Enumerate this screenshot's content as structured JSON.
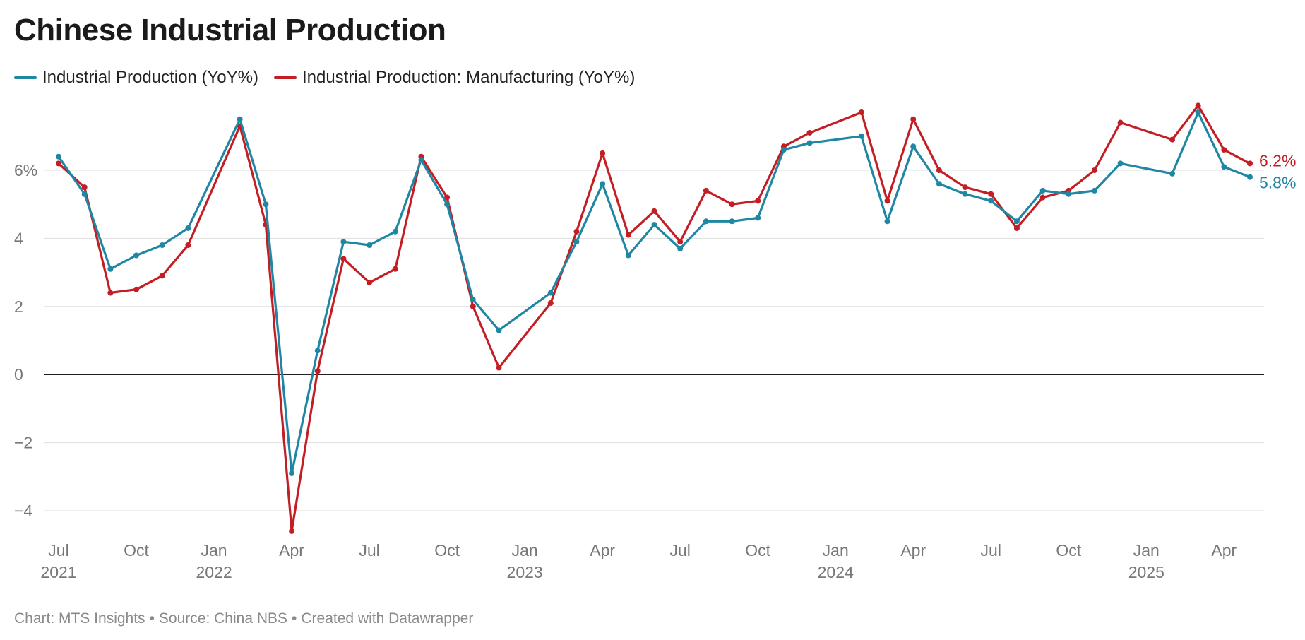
{
  "title": "Chinese Industrial Production",
  "footer": {
    "chart_by": "Chart: MTS Insights",
    "source": "Source: China NBS",
    "created": "Created with Datawrapper",
    "separator": "•"
  },
  "colors": {
    "ip": "#1f86a3",
    "manufacturing": "#c41e25",
    "grid": "#dddddd",
    "zero": "#222222",
    "tick": "#777777"
  },
  "chart_data": {
    "type": "line",
    "title": "Chinese Industrial Production",
    "xlabel": "",
    "ylabel": "",
    "ylim": [
      -4.6,
      7.8
    ],
    "yticks": [
      {
        "value": -4,
        "label": "−4"
      },
      {
        "value": -2,
        "label": "−2"
      },
      {
        "value": 0,
        "label": "0"
      },
      {
        "value": 2,
        "label": "2"
      },
      {
        "value": 4,
        "label": "4"
      },
      {
        "value": 6,
        "label": "6%"
      }
    ],
    "xticks": [
      {
        "index": 0,
        "month": "Jul",
        "year": "2021"
      },
      {
        "index": 3,
        "month": "Oct",
        "year": ""
      },
      {
        "index": 6,
        "month": "Jan",
        "year": "2022"
      },
      {
        "index": 9,
        "month": "Apr",
        "year": ""
      },
      {
        "index": 12,
        "month": "Jul",
        "year": ""
      },
      {
        "index": 15,
        "month": "Oct",
        "year": ""
      },
      {
        "index": 18,
        "month": "Jan",
        "year": "2023"
      },
      {
        "index": 21,
        "month": "Apr",
        "year": ""
      },
      {
        "index": 24,
        "month": "Jul",
        "year": ""
      },
      {
        "index": 27,
        "month": "Oct",
        "year": ""
      },
      {
        "index": 30,
        "month": "Jan",
        "year": "2024"
      },
      {
        "index": 33,
        "month": "Apr",
        "year": ""
      },
      {
        "index": 36,
        "month": "Jul",
        "year": ""
      },
      {
        "index": 39,
        "month": "Oct",
        "year": ""
      },
      {
        "index": 42,
        "month": "Jan",
        "year": "2025"
      },
      {
        "index": 45,
        "month": "Apr",
        "year": ""
      }
    ],
    "x_range": [
      0,
      46
    ],
    "series": [
      {
        "name": "Industrial Production (YoY%)",
        "key": "ip",
        "end_label": "5.8%",
        "points": [
          [
            0,
            6.4
          ],
          [
            1,
            5.3
          ],
          [
            2,
            3.1
          ],
          [
            3,
            3.5
          ],
          [
            4,
            3.8
          ],
          [
            5,
            4.3
          ],
          [
            7,
            7.5
          ],
          [
            8,
            5.0
          ],
          [
            9,
            -2.9
          ],
          [
            10,
            0.7
          ],
          [
            11,
            3.9
          ],
          [
            12,
            3.8
          ],
          [
            13,
            4.2
          ],
          [
            14,
            6.3
          ],
          [
            15,
            5.0
          ],
          [
            16,
            2.2
          ],
          [
            17,
            1.3
          ],
          [
            19,
            2.4
          ],
          [
            20,
            3.9
          ],
          [
            21,
            5.6
          ],
          [
            22,
            3.5
          ],
          [
            23,
            4.4
          ],
          [
            24,
            3.7
          ],
          [
            25,
            4.5
          ],
          [
            26,
            4.5
          ],
          [
            27,
            4.6
          ],
          [
            28,
            6.6
          ],
          [
            29,
            6.8
          ],
          [
            31,
            7.0
          ],
          [
            32,
            4.5
          ],
          [
            33,
            6.7
          ],
          [
            34,
            5.6
          ],
          [
            35,
            5.3
          ],
          [
            36,
            5.1
          ],
          [
            37,
            4.5
          ],
          [
            38,
            5.4
          ],
          [
            39,
            5.3
          ],
          [
            40,
            5.4
          ],
          [
            41,
            6.2
          ],
          [
            43,
            5.9
          ],
          [
            44,
            7.7
          ],
          [
            45,
            6.1
          ],
          [
            46,
            5.8
          ]
        ]
      },
      {
        "name": "Industrial Production: Manufacturing (YoY%)",
        "key": "manufacturing",
        "end_label": "6.2%",
        "points": [
          [
            0,
            6.2
          ],
          [
            1,
            5.5
          ],
          [
            2,
            2.4
          ],
          [
            3,
            2.5
          ],
          [
            4,
            2.9
          ],
          [
            5,
            3.8
          ],
          [
            7,
            7.3
          ],
          [
            8,
            4.4
          ],
          [
            9,
            -4.6
          ],
          [
            10,
            0.1
          ],
          [
            11,
            3.4
          ],
          [
            12,
            2.7
          ],
          [
            13,
            3.1
          ],
          [
            14,
            6.4
          ],
          [
            15,
            5.2
          ],
          [
            16,
            2.0
          ],
          [
            17,
            0.2
          ],
          [
            19,
            2.1
          ],
          [
            20,
            4.2
          ],
          [
            21,
            6.5
          ],
          [
            22,
            4.1
          ],
          [
            23,
            4.8
          ],
          [
            24,
            3.9
          ],
          [
            25,
            5.4
          ],
          [
            26,
            5.0
          ],
          [
            27,
            5.1
          ],
          [
            28,
            6.7
          ],
          [
            29,
            7.1
          ],
          [
            31,
            7.7
          ],
          [
            32,
            5.1
          ],
          [
            33,
            7.5
          ],
          [
            34,
            6.0
          ],
          [
            35,
            5.5
          ],
          [
            36,
            5.3
          ],
          [
            37,
            4.3
          ],
          [
            38,
            5.2
          ],
          [
            39,
            5.4
          ],
          [
            40,
            6.0
          ],
          [
            41,
            7.4
          ],
          [
            43,
            6.9
          ],
          [
            44,
            7.9
          ],
          [
            45,
            6.6
          ],
          [
            46,
            6.2
          ]
        ]
      }
    ]
  }
}
